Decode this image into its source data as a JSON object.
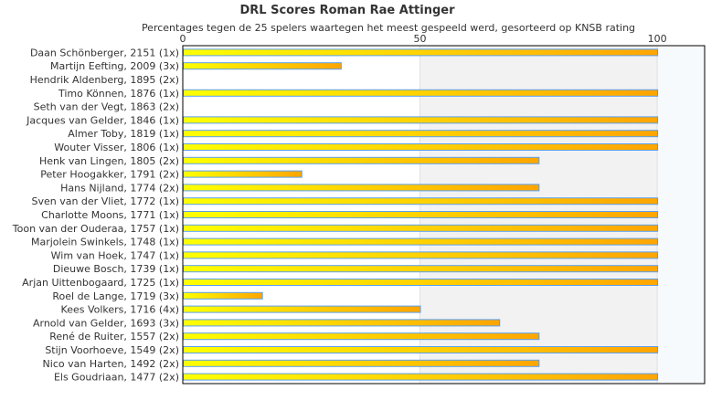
{
  "chart_data": {
    "type": "bar",
    "orientation": "horizontal",
    "title": "DRL Scores Roman Rae Attinger",
    "subtitle": "Percentages tegen de 25 spelers waartegen het meest gespeeld werd, gesorteerd op KNSB rating",
    "xlabel": "",
    "ylabel": "",
    "xlim": [
      0,
      110
    ],
    "xticks": [
      "0",
      "50",
      "100"
    ],
    "xtick_values": [
      0,
      50,
      100
    ],
    "grid": true,
    "colors": {
      "bar_start": "#ffff00",
      "bar_end": "#ffa500",
      "bar_border": "#5aa0f0",
      "band": "#f2f2f2",
      "band_over": "#f7fafd"
    },
    "categories": [
      "Daan Schönberger, 2151 (1x)",
      "Martijn Eefting, 2009 (3x)",
      "Hendrik Aldenberg, 1895 (2x)",
      "Timo Können, 1876 (1x)",
      "Seth van der Vegt, 1863 (2x)",
      "Jacques van Gelder, 1846 (1x)",
      "Almer Toby, 1819 (1x)",
      "Wouter Visser, 1806 (1x)",
      "Henk van Lingen, 1805 (2x)",
      "Peter Hoogakker, 1791 (2x)",
      "Hans Nijland, 1774 (2x)",
      "Sven van der Vliet, 1772 (1x)",
      "Charlotte Moons, 1771 (1x)",
      "Toon van der Ouderaa, 1757 (1x)",
      "Marjolein Swinkels, 1748 (1x)",
      "Wim van Hoek, 1747 (1x)",
      "Dieuwe Bosch, 1739 (1x)",
      "Arjan Uittenbogaard, 1725 (1x)",
      "Roel de Lange, 1719 (3x)",
      "Kees Volkers, 1716 (4x)",
      "Arnold van Gelder, 1693 (3x)",
      "René de Ruiter, 1557 (2x)",
      "Stijn Voorhoeve, 1549 (2x)",
      "Nico van Harten, 1492 (2x)",
      "Els Goudriaan, 1477 (2x)"
    ],
    "values": [
      100,
      33.3,
      0,
      100,
      0,
      100,
      100,
      100,
      75,
      25,
      75,
      100,
      100,
      100,
      100,
      100,
      100,
      100,
      16.7,
      50,
      66.7,
      75,
      100,
      75,
      100
    ]
  }
}
